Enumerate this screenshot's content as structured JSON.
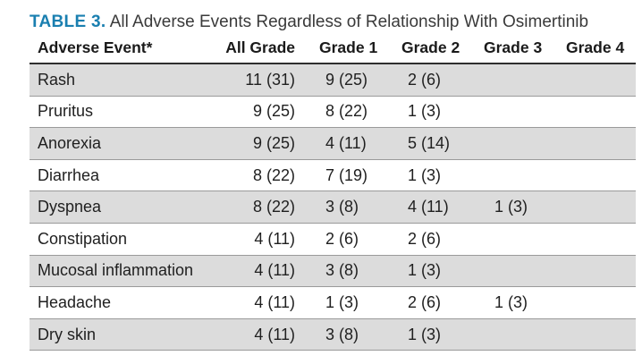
{
  "caption": {
    "label": "TABLE 3.",
    "title": "All Adverse Events Regardless of Relationship With Osimertinib"
  },
  "table": {
    "headers": [
      "Adverse Event*",
      "All Grade",
      "Grade 1",
      "Grade 2",
      "Grade 3",
      "Grade 4"
    ],
    "rows": [
      [
        "Rash",
        "11 (31)",
        "9 (25)",
        "2 (6)",
        "",
        ""
      ],
      [
        "Pruritus",
        "9 (25)",
        "8 (22)",
        "1 (3)",
        "",
        ""
      ],
      [
        "Anorexia",
        "9 (25)",
        "4 (11)",
        "5 (14)",
        "",
        ""
      ],
      [
        "Diarrhea",
        "8 (22)",
        "7 (19)",
        "1 (3)",
        "",
        ""
      ],
      [
        "Dyspnea",
        "8 (22)",
        "3 (8)",
        "4 (11)",
        "1 (3)",
        ""
      ],
      [
        "Constipation",
        "4 (11)",
        "2 (6)",
        "2 (6)",
        "",
        ""
      ],
      [
        "Mucosal inflammation",
        "4 (11)",
        "3 (8)",
        "1 (3)",
        "",
        ""
      ],
      [
        "Headache",
        "4 (11)",
        "1 (3)",
        "2 (6)",
        "1 (3)",
        ""
      ],
      [
        "Dry skin",
        "4 (11)",
        "3 (8)",
        "1 (3)",
        "",
        ""
      ]
    ]
  }
}
